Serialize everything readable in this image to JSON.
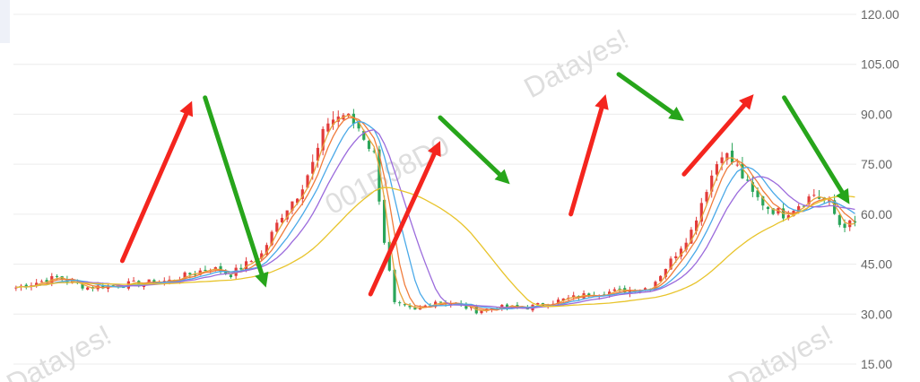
{
  "chart_data": {
    "type": "candlestick",
    "title": "",
    "xlabel": "",
    "ylabel": "",
    "ylim": [
      15,
      120
    ],
    "y_axis_position": "right",
    "y_ticks": [
      {
        "value": 120,
        "label": "120.00"
      },
      {
        "value": 105,
        "label": "105.00"
      },
      {
        "value": 90,
        "label": "90.00"
      },
      {
        "value": 75,
        "label": "75.00"
      },
      {
        "value": 60,
        "label": "60.00"
      },
      {
        "value": 45,
        "label": "45.00"
      },
      {
        "value": 30,
        "label": "30.00"
      },
      {
        "value": 15,
        "label": "15.00"
      }
    ],
    "grid": true,
    "x_count": 165,
    "price_keypoints": [
      [
        0,
        38
      ],
      [
        8,
        41
      ],
      [
        14,
        38
      ],
      [
        22,
        39
      ],
      [
        30,
        40
      ],
      [
        38,
        44
      ],
      [
        42,
        42
      ],
      [
        48,
        48
      ],
      [
        52,
        60
      ],
      [
        55,
        66
      ],
      [
        58,
        75
      ],
      [
        61,
        88
      ],
      [
        64,
        90
      ],
      [
        67,
        86
      ],
      [
        70,
        78
      ],
      [
        72,
        52
      ],
      [
        74,
        33
      ],
      [
        78,
        31
      ],
      [
        82,
        34
      ],
      [
        86,
        33
      ],
      [
        90,
        31
      ],
      [
        94,
        32
      ],
      [
        100,
        32
      ],
      [
        106,
        34
      ],
      [
        112,
        36
      ],
      [
        118,
        37
      ],
      [
        124,
        38
      ],
      [
        128,
        46
      ],
      [
        132,
        55
      ],
      [
        135,
        68
      ],
      [
        138,
        79
      ],
      [
        141,
        74
      ],
      [
        144,
        66
      ],
      [
        147,
        62
      ],
      [
        150,
        60
      ],
      [
        153,
        63
      ],
      [
        156,
        66
      ],
      [
        159,
        63
      ],
      [
        161,
        57
      ]
    ],
    "moving_averages": [
      {
        "window": 3,
        "color": "#e8a33c"
      },
      {
        "window": 5,
        "color": "#f07c3c"
      },
      {
        "window": 8,
        "color": "#4aa9e8"
      },
      {
        "window": 12,
        "color": "#9b6bdc"
      },
      {
        "window": 30,
        "color": "#e8c42c"
      }
    ],
    "candle_colors": {
      "up": "#e23b3b",
      "down": "#2aa55a"
    },
    "arrows": [
      {
        "direction": "up",
        "color": "#f4251e",
        "from": [
          25,
          46
        ],
        "to": [
          41,
          94
        ]
      },
      {
        "direction": "down",
        "color": "#27a51b",
        "from": [
          44,
          95
        ],
        "to": [
          58,
          38
        ]
      },
      {
        "direction": "up",
        "color": "#f4251e",
        "from": [
          82,
          36
        ],
        "to": [
          98,
          82
        ]
      },
      {
        "direction": "down",
        "color": "#27a51b",
        "from": [
          98,
          89
        ],
        "to": [
          114,
          69
        ]
      },
      {
        "direction": "up",
        "color": "#f4251e",
        "from": [
          128,
          60
        ],
        "to": [
          136,
          96
        ]
      },
      {
        "direction": "down",
        "color": "#27a51b",
        "from": [
          139,
          102
        ],
        "to": [
          154,
          88
        ]
      },
      {
        "direction": "up",
        "color": "#f4251e",
        "from": [
          154,
          72
        ],
        "to": [
          170,
          96
        ]
      },
      {
        "direction": "down",
        "color": "#27a51b",
        "from": [
          177,
          95
        ],
        "to": [
          192,
          63
        ]
      }
    ]
  },
  "watermarks": [
    "Datayes!",
    "001B98D0",
    "Datayes!",
    "Datayes!"
  ],
  "colors": {
    "grid": "#ececec",
    "axis_text": "#666666",
    "watermark": "#d4d4d4"
  }
}
